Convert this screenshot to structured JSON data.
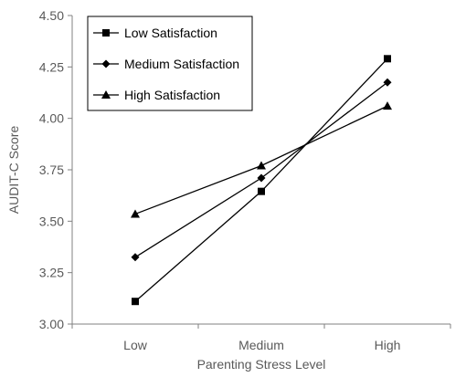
{
  "chart_data": {
    "type": "line",
    "xlabel": "Parenting Stress Level",
    "ylabel": "AUDIT-C Score",
    "categories": [
      "Low",
      "Medium",
      "High"
    ],
    "ylim": [
      3.0,
      4.5
    ],
    "yticks": [
      "3.00",
      "3.25",
      "3.50",
      "3.75",
      "4.00",
      "4.25",
      "4.50"
    ],
    "grid": false,
    "legend_position": "top-left",
    "series": [
      {
        "name": "Low Satisfaction",
        "marker": "square",
        "values": [
          3.11,
          3.645,
          4.29
        ]
      },
      {
        "name": "Medium Satisfaction",
        "marker": "diamond",
        "values": [
          3.325,
          3.71,
          4.175
        ]
      },
      {
        "name": "High Satisfaction",
        "marker": "triangle",
        "values": [
          3.535,
          3.77,
          4.06
        ]
      }
    ],
    "colors": {
      "line": "#000000",
      "axis": "#808080",
      "text": "#595959"
    }
  }
}
